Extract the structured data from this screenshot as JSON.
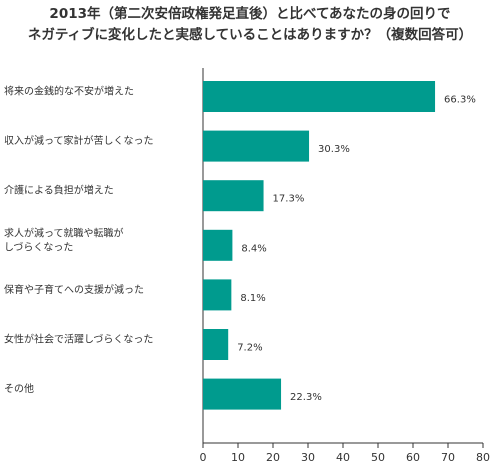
{
  "title_line1": "2013年（第二次安倍政権発足直後）と比べてあなたの身の回りで",
  "title_line2": "ネガティブに変化したと実感していることはありますか？（複数回答可）",
  "chart_data": {
    "type": "bar",
    "orientation": "horizontal",
    "categories": [
      [
        "将来の金銭的な不安が増えた"
      ],
      [
        "収入が減って家計が苦しくなった"
      ],
      [
        "介護による負担が増えた"
      ],
      [
        "求人が減って就職や転職が",
        "しづらくなった"
      ],
      [
        "保育や子育てへの支援が減った"
      ],
      [
        "女性が社会で活躍しづらくなった"
      ],
      [
        "その他"
      ]
    ],
    "values": [
      66.3,
      30.3,
      17.3,
      8.4,
      8.1,
      7.2,
      22.3
    ],
    "value_labels": [
      "66.3%",
      "30.3%",
      "17.3%",
      "8.4%",
      "8.1%",
      "7.2%",
      "22.3%"
    ],
    "xlim": [
      0,
      80
    ],
    "xticks": [
      0,
      10,
      20,
      30,
      40,
      50,
      60,
      70,
      80
    ],
    "bar_color": "#009b8e",
    "grid": false
  }
}
